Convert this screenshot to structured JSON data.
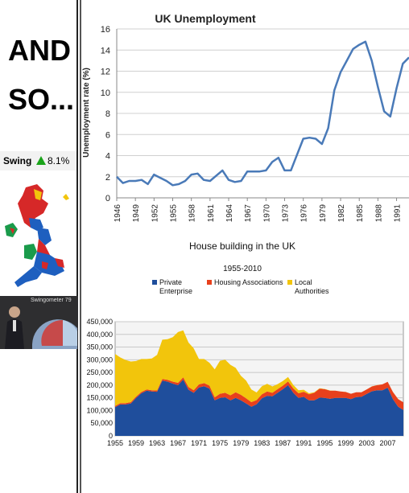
{
  "sidebar": {
    "headline_line1": "AND",
    "headline_line2": "SO...",
    "swing_label": "Swing",
    "swing_value": "8.1%",
    "swing_color": "#1aa31a",
    "video_caption": "Swingometer 79"
  },
  "chart_data": [
    {
      "type": "line",
      "title": "UK Unemployment",
      "xlabel": "",
      "ylabel": "Unemployment rate (%)",
      "ylim": [
        0,
        16
      ],
      "yticks": [
        "0",
        "2",
        "4",
        "6",
        "8",
        "10",
        "12",
        "14",
        "16"
      ],
      "xticks": [
        "1946",
        "1949",
        "1952",
        "1955",
        "1958",
        "1961",
        "1964",
        "1967",
        "1970",
        "1973",
        "1976",
        "1979",
        "1982",
        "1985",
        "1988",
        "1991"
      ],
      "grid": true,
      "series": [
        {
          "color": "#4a7ab8",
          "points": [
            [
              1946,
              2.0
            ],
            [
              1947,
              1.4
            ],
            [
              1948,
              1.6
            ],
            [
              1949,
              1.6
            ],
            [
              1950,
              1.7
            ],
            [
              1951,
              1.3
            ],
            [
              1952,
              2.2
            ],
            [
              1953,
              1.9
            ],
            [
              1954,
              1.6
            ],
            [
              1955,
              1.2
            ],
            [
              1956,
              1.3
            ],
            [
              1957,
              1.6
            ],
            [
              1958,
              2.2
            ],
            [
              1959,
              2.3
            ],
            [
              1960,
              1.7
            ],
            [
              1961,
              1.6
            ],
            [
              1962,
              2.1
            ],
            [
              1963,
              2.6
            ],
            [
              1964,
              1.7
            ],
            [
              1965,
              1.5
            ],
            [
              1966,
              1.6
            ],
            [
              1967,
              2.5
            ],
            [
              1968,
              2.5
            ],
            [
              1969,
              2.5
            ],
            [
              1970,
              2.6
            ],
            [
              1971,
              3.4
            ],
            [
              1972,
              3.8
            ],
            [
              1973,
              2.6
            ],
            [
              1974,
              2.6
            ],
            [
              1975,
              4.1
            ],
            [
              1976,
              5.6
            ],
            [
              1977,
              5.7
            ],
            [
              1978,
              5.6
            ],
            [
              1979,
              5.1
            ],
            [
              1980,
              6.6
            ],
            [
              1981,
              10.2
            ],
            [
              1982,
              11.9
            ],
            [
              1983,
              13.0
            ],
            [
              1984,
              14.1
            ],
            [
              1985,
              14.5
            ],
            [
              1986,
              14.8
            ],
            [
              1987,
              13.0
            ],
            [
              1988,
              10.5
            ],
            [
              1989,
              8.2
            ],
            [
              1990,
              7.7
            ],
            [
              1991,
              10.4
            ],
            [
              1992,
              12.7
            ],
            [
              1993,
              13.3
            ]
          ]
        }
      ]
    },
    {
      "type": "area",
      "title": "House building in the UK",
      "subtitle": "1955-2010",
      "xlabel": "",
      "ylabel": "",
      "ylim": [
        0,
        450000
      ],
      "yticks": [
        "0",
        "50,000",
        "100,000",
        "150,000",
        "200,000",
        "250,000",
        "300,000",
        "350,000",
        "400,000",
        "450,000"
      ],
      "xticks": [
        "1955",
        "1959",
        "1963",
        "1967",
        "1971",
        "1975",
        "1979",
        "1983",
        "1987",
        "1991",
        "1995",
        "1999",
        "2003",
        "2007"
      ],
      "stacked": true,
      "legend": "top",
      "grid": true,
      "series": [
        {
          "name": "Private Enterprise",
          "color": "#1f4e9c",
          "points": [
            [
              1955,
              113000
            ],
            [
              1956,
              124000
            ],
            [
              1957,
              124000
            ],
            [
              1958,
              128000
            ],
            [
              1959,
              150000
            ],
            [
              1960,
              168000
            ],
            [
              1961,
              178000
            ],
            [
              1962,
              175000
            ],
            [
              1963,
              174000
            ],
            [
              1964,
              218000
            ],
            [
              1965,
              214000
            ],
            [
              1966,
              206000
            ],
            [
              1967,
              200000
            ],
            [
              1968,
              222000
            ],
            [
              1969,
              182000
            ],
            [
              1970,
              170000
            ],
            [
              1971,
              191000
            ],
            [
              1972,
              196000
            ],
            [
              1973,
              186000
            ],
            [
              1974,
              140000
            ],
            [
              1975,
              150000
            ],
            [
              1976,
              152000
            ],
            [
              1977,
              140000
            ],
            [
              1978,
              150000
            ],
            [
              1979,
              140000
            ],
            [
              1980,
              128000
            ],
            [
              1981,
              115000
            ],
            [
              1982,
              125000
            ],
            [
              1983,
              148000
            ],
            [
              1984,
              158000
            ],
            [
              1985,
              156000
            ],
            [
              1986,
              170000
            ],
            [
              1987,
              184000
            ],
            [
              1988,
              200000
            ],
            [
              1989,
              170000
            ],
            [
              1990,
              150000
            ],
            [
              1991,
              154000
            ],
            [
              1992,
              140000
            ],
            [
              1993,
              140000
            ],
            [
              1994,
              151000
            ],
            [
              1995,
              150000
            ],
            [
              1996,
              146000
            ],
            [
              1997,
              150000
            ],
            [
              1998,
              150000
            ],
            [
              1999,
              150000
            ],
            [
              2000,
              145000
            ],
            [
              2001,
              153000
            ],
            [
              2002,
              154000
            ],
            [
              2003,
              165000
            ],
            [
              2004,
              176000
            ],
            [
              2005,
              180000
            ],
            [
              2006,
              180000
            ],
            [
              2007,
              190000
            ],
            [
              2008,
              145000
            ],
            [
              2009,
              115000
            ],
            [
              2010,
              102000
            ]
          ]
        },
        {
          "name": "Housing Associations",
          "color": "#e8401c",
          "points": [
            [
              1955,
              5000
            ],
            [
              1956,
              5000
            ],
            [
              1957,
              5000
            ],
            [
              1958,
              5000
            ],
            [
              1959,
              5000
            ],
            [
              1960,
              5000
            ],
            [
              1961,
              5000
            ],
            [
              1962,
              5000
            ],
            [
              1963,
              5000
            ],
            [
              1964,
              6000
            ],
            [
              1965,
              7000
            ],
            [
              1966,
              8000
            ],
            [
              1967,
              9000
            ],
            [
              1968,
              9000
            ],
            [
              1969,
              11000
            ],
            [
              1970,
              10000
            ],
            [
              1971,
              12000
            ],
            [
              1972,
              12000
            ],
            [
              1973,
              12000
            ],
            [
              1974,
              12000
            ],
            [
              1975,
              16000
            ],
            [
              1976,
              18000
            ],
            [
              1977,
              20000
            ],
            [
              1978,
              22000
            ],
            [
              1979,
              22000
            ],
            [
              1980,
              20000
            ],
            [
              1981,
              18000
            ],
            [
              1982,
              16000
            ],
            [
              1983,
              16000
            ],
            [
              1984,
              17000
            ],
            [
              1985,
              14000
            ],
            [
              1986,
              14000
            ],
            [
              1987,
              14000
            ],
            [
              1988,
              15000
            ],
            [
              1989,
              17000
            ],
            [
              1990,
              18000
            ],
            [
              1991,
              20000
            ],
            [
              1992,
              24000
            ],
            [
              1993,
              30000
            ],
            [
              1994,
              35000
            ],
            [
              1995,
              34000
            ],
            [
              1996,
              32000
            ],
            [
              1997,
              28000
            ],
            [
              1998,
              25000
            ],
            [
              1999,
              23000
            ],
            [
              2000,
              21000
            ],
            [
              2001,
              19000
            ],
            [
              2002,
              18000
            ],
            [
              2003,
              18000
            ],
            [
              2004,
              19000
            ],
            [
              2005,
              20000
            ],
            [
              2006,
              23000
            ],
            [
              2007,
              23000
            ],
            [
              2008,
              28000
            ],
            [
              2009,
              30000
            ],
            [
              2010,
              30000
            ]
          ]
        },
        {
          "name": "Local Authorities",
          "color": "#f2c50c",
          "points": [
            [
              1955,
              205000
            ],
            [
              1956,
              180000
            ],
            [
              1957,
              170000
            ],
            [
              1958,
              160000
            ],
            [
              1959,
              140000
            ],
            [
              1960,
              130000
            ],
            [
              1961,
              120000
            ],
            [
              1962,
              125000
            ],
            [
              1963,
              140000
            ],
            [
              1964,
              155000
            ],
            [
              1965,
              160000
            ],
            [
              1966,
              175000
            ],
            [
              1967,
              200000
            ],
            [
              1968,
              185000
            ],
            [
              1969,
              175000
            ],
            [
              1970,
              165000
            ],
            [
              1971,
              100000
            ],
            [
              1972,
              95000
            ],
            [
              1973,
              90000
            ],
            [
              1974,
              110000
            ],
            [
              1975,
              130000
            ],
            [
              1976,
              130000
            ],
            [
              1977,
              120000
            ],
            [
              1978,
              96000
            ],
            [
              1979,
              75000
            ],
            [
              1980,
              70000
            ],
            [
              1981,
              50000
            ],
            [
              1982,
              30000
            ],
            [
              1983,
              32000
            ],
            [
              1984,
              30000
            ],
            [
              1985,
              25000
            ],
            [
              1986,
              20000
            ],
            [
              1987,
              18000
            ],
            [
              1988,
              17000
            ],
            [
              1989,
              14000
            ],
            [
              1990,
              12000
            ],
            [
              1991,
              8000
            ],
            [
              1992,
              4000
            ],
            [
              1993,
              2000
            ],
            [
              1994,
              1500
            ],
            [
              1995,
              1000
            ],
            [
              1996,
              1000
            ],
            [
              1997,
              500
            ],
            [
              1998,
              300
            ],
            [
              1999,
              300
            ],
            [
              2000,
              200
            ],
            [
              2001,
              200
            ],
            [
              2002,
              200
            ],
            [
              2003,
              200
            ],
            [
              2004,
              200
            ],
            [
              2005,
              200
            ],
            [
              2006,
              200
            ],
            [
              2007,
              200
            ],
            [
              2008,
              200
            ],
            [
              2009,
              300
            ],
            [
              2010,
              300
            ]
          ]
        }
      ]
    }
  ]
}
